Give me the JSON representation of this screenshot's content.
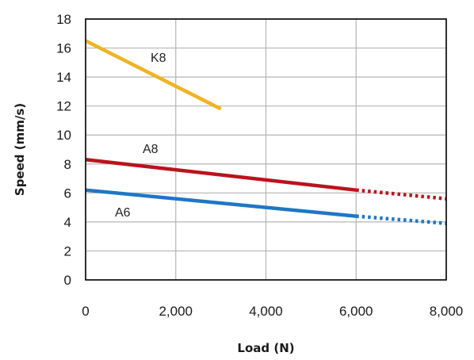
{
  "chart_data": {
    "type": "line",
    "title": "",
    "xlabel": "Load (N)",
    "ylabel": "Speed (mm/s)",
    "xlim": [
      0,
      8000
    ],
    "ylim": [
      0,
      18
    ],
    "x_ticks": [
      0,
      2000,
      4000,
      6000,
      8000
    ],
    "x_tick_labels": [
      "0",
      "2,000",
      "4,000",
      "6,000",
      "8,000"
    ],
    "y_ticks": [
      0,
      2,
      4,
      6,
      8,
      10,
      12,
      14,
      16,
      18
    ],
    "y_tick_labels": [
      "0",
      "2",
      "4",
      "6",
      "8",
      "10",
      "12",
      "14",
      "16",
      "18"
    ],
    "grid": true,
    "legend": "none (series labeled directly on lines)",
    "series": [
      {
        "name": "K8",
        "color": "#f0b323",
        "solid": {
          "x": [
            0,
            3000
          ],
          "y": [
            16.5,
            11.8
          ]
        },
        "dotted": null
      },
      {
        "name": "A8",
        "color": "#b8141e",
        "solid": {
          "x": [
            0,
            6000
          ],
          "y": [
            8.3,
            6.2
          ]
        },
        "dotted": {
          "x": [
            6000,
            8000
          ],
          "y": [
            6.2,
            5.6
          ]
        }
      },
      {
        "name": "A6",
        "color": "#1f77c4",
        "solid": {
          "x": [
            0,
            6000
          ],
          "y": [
            6.2,
            4.4
          ]
        },
        "dotted": {
          "x": [
            6000,
            8000
          ],
          "y": [
            4.4,
            3.9
          ]
        }
      }
    ]
  }
}
